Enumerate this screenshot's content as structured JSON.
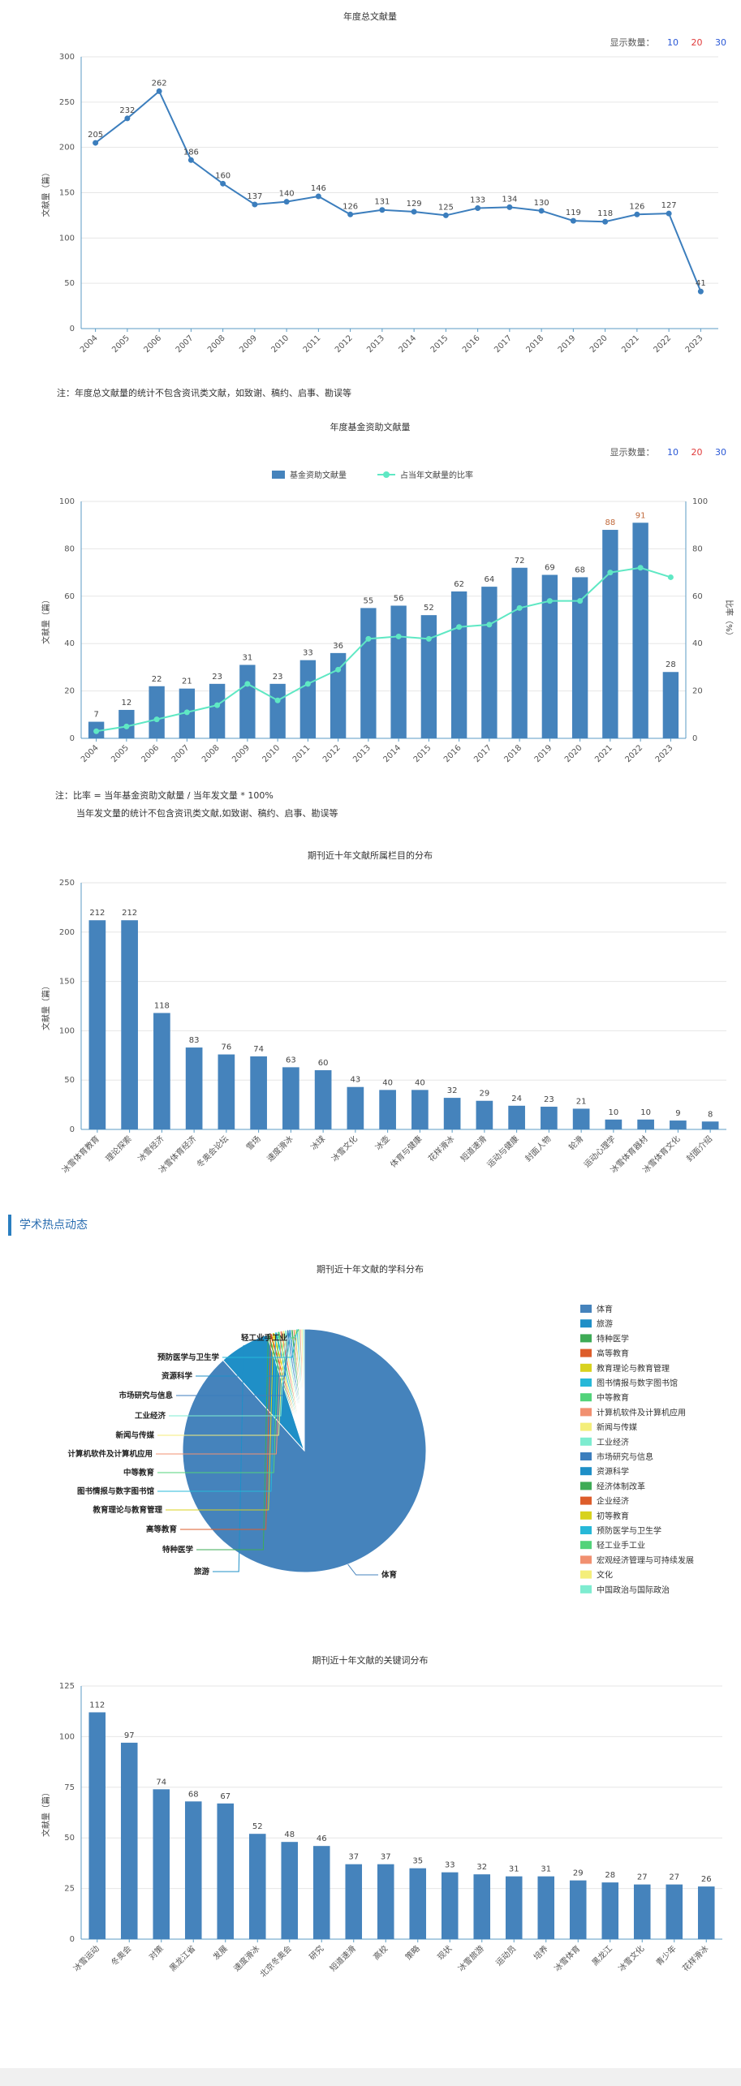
{
  "chart1": {
    "title": "年度总文献量",
    "count_label": "显示数量：",
    "count_options": [
      "10",
      "20",
      "30"
    ],
    "note": "注：年度总文献量的统计不包含资讯类文献，如致谢、稿约、启事、勘误等"
  },
  "chart2": {
    "title": "年度基金资助文献量",
    "count_label": "显示数量：",
    "count_options": [
      "10",
      "20",
      "30"
    ],
    "note_line1": "注：比率 = 当年基金资助文献量 / 当年发文量 * 100%",
    "note_line2": "当年发文量的统计不包含资讯类文献,如致谢、稿约、启事、勘误等"
  },
  "chart3": {
    "title": "期刊近十年文献所属栏目的分布"
  },
  "section": {
    "title": "学术热点动态"
  },
  "chart4": {
    "title": "期刊近十年文献的学科分布"
  },
  "chart5": {
    "title": "期刊近十年文献的关键词分布"
  },
  "chart_data": [
    {
      "type": "line",
      "title": "年度总文献量",
      "ylabel": "文献量（篇）",
      "x": [
        "2004",
        "2005",
        "2006",
        "2007",
        "2008",
        "2009",
        "2010",
        "2011",
        "2012",
        "2013",
        "2014",
        "2015",
        "2016",
        "2017",
        "2018",
        "2019",
        "2020",
        "2021",
        "2022",
        "2023"
      ],
      "values": [
        205,
        232,
        262,
        186,
        160,
        137,
        140,
        146,
        126,
        131,
        129,
        125,
        133,
        134,
        130,
        119,
        118,
        126,
        127,
        41
      ],
      "ylim": [
        0,
        300
      ],
      "yticks": [
        0,
        50,
        100,
        150,
        200,
        250,
        300
      ],
      "color": "#3c7ebd"
    },
    {
      "type": "bar",
      "title": "年度基金资助文献量",
      "ylabel": "文献量（篇）",
      "y2label": "比率（%）",
      "categories": [
        "2004",
        "2005",
        "2006",
        "2007",
        "2008",
        "2009",
        "2010",
        "2011",
        "2012",
        "2013",
        "2014",
        "2015",
        "2016",
        "2017",
        "2018",
        "2019",
        "2020",
        "2021",
        "2022",
        "2023"
      ],
      "series": [
        {
          "name": "基金资助文献量",
          "type": "bar",
          "color": "#4583bc",
          "values": [
            7,
            12,
            22,
            21,
            23,
            31,
            23,
            33,
            36,
            55,
            56,
            52,
            62,
            64,
            72,
            69,
            68,
            88,
            91,
            28
          ]
        },
        {
          "name": "占当年文献量的比率",
          "type": "line",
          "color": "#5fe8c4",
          "values": [
            3,
            5,
            8,
            11,
            14,
            23,
            16,
            23,
            29,
            42,
            43,
            42,
            47,
            48,
            55,
            58,
            58,
            70,
            72,
            68
          ]
        }
      ],
      "ylim": [
        0,
        100
      ],
      "y2lim": [
        0,
        100
      ],
      "yticks": [
        0,
        20,
        40,
        60,
        80,
        100
      ]
    },
    {
      "type": "bar",
      "title": "期刊近十年文献所属栏目的分布",
      "ylabel": "文献量（篇）",
      "categories": [
        "冰雪体育教育",
        "理论探索",
        "冰雪经济",
        "冰雪体育经济",
        "冬奥会论坛",
        "雪场",
        "速度滑冰",
        "冰球",
        "冰雪文化",
        "冰壶",
        "体育与健康",
        "花样滑冰",
        "短道速滑",
        "运动与健康",
        "封面人物",
        "轮滑",
        "运动心理学",
        "冰雪体育器材",
        "冰雪体育文化",
        "封面介绍"
      ],
      "values": [
        212,
        212,
        118,
        83,
        76,
        74,
        63,
        60,
        43,
        40,
        40,
        32,
        29,
        24,
        23,
        21,
        10,
        10,
        9,
        8
      ],
      "ylim": [
        0,
        250
      ],
      "yticks": [
        0,
        50,
        100,
        150,
        200,
        250
      ],
      "color": "#4583bc"
    },
    {
      "type": "pie",
      "title": "期刊近十年文献的学科分布",
      "labels": [
        "体育",
        "旅游",
        "特种医学",
        "高等教育",
        "教育理论与教育管理",
        "图书情报与数字图书馆",
        "中等教育",
        "计算机软件及计算机应用",
        "新闻与传媒",
        "工业经济",
        "市场研究与信息",
        "资源科学",
        "经济体制改革",
        "企业经济",
        "初等教育",
        "预防医学与卫生学",
        "轻工业手工业",
        "宏观经济管理与可持续发展",
        "文化",
        "中国政治与国际政治"
      ],
      "values": [
        1260,
        95,
        5,
        5,
        5,
        5,
        5,
        5,
        4,
        4,
        4,
        4,
        4,
        3,
        3,
        3,
        3,
        3,
        3,
        3
      ],
      "colors": [
        "#4583bc",
        "#1f8fc7",
        "#3eab56",
        "#dd5d2b",
        "#d8d21e",
        "#27b8d8",
        "#52d37a",
        "#f19070",
        "#f4ee7a",
        "#7eecd0",
        "#3c7ebd",
        "#1f8fc7",
        "#3eab56",
        "#dd5d2b",
        "#d8d21e",
        "#27b8d8",
        "#52d37a",
        "#f19070",
        "#f4ee7a",
        "#7eecd0"
      ],
      "pie_labels": [
        "体育",
        "旅游",
        "特种医学",
        "高等教育",
        "教育理论与教育管理",
        "图书情报与数字图书馆",
        "中等教育",
        "计算机软件及计算机应用",
        "新闻与传媒",
        "工业经济",
        "市场研究与信息",
        "资源科学",
        "预防医学与卫生学",
        "轻工业手工业"
      ]
    },
    {
      "type": "bar",
      "title": "期刊近十年文献的关键词分布",
      "ylabel": "文献量（篇）",
      "categories": [
        "冰雪运动",
        "冬奥会",
        "对策",
        "黑龙江省",
        "发展",
        "速度滑冰",
        "北京冬奥会",
        "研究",
        "短道速滑",
        "高校",
        "策略",
        "现状",
        "冰雪旅游",
        "运动员",
        "培养",
        "冰雪体育",
        "黑龙江",
        "冰雪文化",
        "青少年",
        "花样滑冰"
      ],
      "values": [
        112,
        97,
        74,
        68,
        67,
        52,
        48,
        46,
        37,
        37,
        35,
        33,
        32,
        31,
        31,
        29,
        28,
        27,
        27,
        26
      ],
      "ylim": [
        0,
        125
      ],
      "yticks": [
        0,
        25,
        50,
        75,
        100,
        125
      ],
      "color": "#4583bc"
    }
  ]
}
